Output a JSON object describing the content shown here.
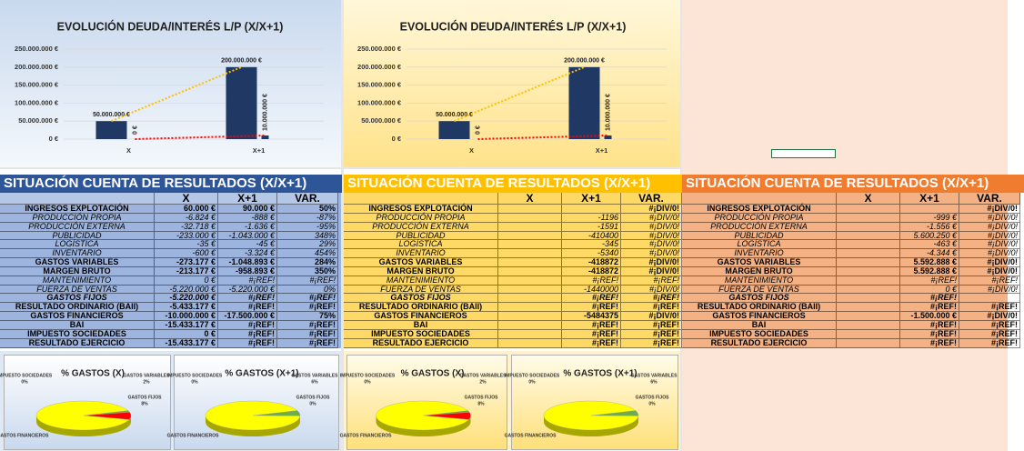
{
  "chart_data": [
    {
      "type": "bar",
      "title": "EVOLUCIÓN DEUDA/INTERÉS L/P (X/X+1)",
      "categories": [
        "X",
        "X+1"
      ],
      "series": [
        {
          "color": "#1f3864",
          "trendline": "#ffc000",
          "values": [
            50000000,
            200000000
          ],
          "value_labels": [
            "50.000.000 €",
            "200.000.000 €"
          ]
        },
        {
          "color": "#1f3864",
          "trendline": "#ff0000",
          "values": [
            0,
            10000000
          ],
          "value_labels": [
            "0 €",
            "10.000.000 €"
          ]
        }
      ],
      "ylim": [
        0,
        250000000
      ],
      "yticks": [
        {
          "value": 0,
          "label": "0 €"
        },
        {
          "value": 50000000,
          "label": "50.000.000 €"
        },
        {
          "value": 100000000,
          "label": "100.000.000 €"
        },
        {
          "value": 150000000,
          "label": "150.000.000 €"
        },
        {
          "value": 200000000,
          "label": "200.000.000 €"
        },
        {
          "value": 250000000,
          "label": "250.000.000 €"
        }
      ],
      "grid": true
    },
    {
      "type": "bar",
      "title": "EVOLUCIÓN DEUDA/INTERÉS L/P (X/X+1)",
      "categories": [
        "X",
        "X+1"
      ],
      "series": [
        {
          "color": "#1f3864",
          "trendline": "#ffc000",
          "values": [
            50000000,
            200000000
          ],
          "value_labels": [
            "50.000.000 €",
            "200.000.000 €"
          ]
        },
        {
          "color": "#1f3864",
          "trendline": "#ff0000",
          "values": [
            0,
            10000000
          ],
          "value_labels": [
            "0 €",
            "10.000.000 €"
          ]
        }
      ],
      "ylim": [
        0,
        250000000
      ],
      "yticks": [
        {
          "value": 0,
          "label": "0 €"
        },
        {
          "value": 50000000,
          "label": "50.000.000 €"
        },
        {
          "value": 100000000,
          "label": "100.000.000 €"
        },
        {
          "value": 150000000,
          "label": "150.000.000 €"
        },
        {
          "value": 200000000,
          "label": "200.000.000 €"
        },
        {
          "value": 250000000,
          "label": "250.000.000 €"
        }
      ],
      "grid": true
    },
    {
      "type": "pie",
      "title": "% GASTOS (X)",
      "categories": [
        "IMPUESTO SOCIEDADES",
        "GASTOS VARIABLES",
        "GASTOS FIJOS",
        "GASTOS FINANCIEROS"
      ],
      "values": [
        0,
        2,
        8,
        90
      ],
      "value_labels": [
        "0%",
        "2%",
        "8%",
        null
      ],
      "colors": [
        "#4472c4",
        "#70ad47",
        "#ff0000",
        "#ffff00"
      ]
    },
    {
      "type": "pie",
      "title": "% GASTOS (X+1)",
      "categories": [
        "IMPUESTO SOCIEDADES",
        "GASTOS VARIABLES",
        "GASTOS FIJOS",
        "GASTOS FINANCIEROS"
      ],
      "values": [
        0,
        6,
        0,
        94
      ],
      "value_labels": [
        "0%",
        "6%",
        "0%",
        null
      ],
      "colors": [
        "#4472c4",
        "#70ad47",
        "#ff0000",
        "#ffff00"
      ]
    },
    {
      "type": "pie",
      "title": "% GASTOS (X)",
      "categories": [
        "IMPUESTO SOCIEDADES",
        "GASTOS VARIABLES",
        "GASTOS FIJOS",
        "GASTOS FINANCIEROS"
      ],
      "values": [
        0,
        2,
        8,
        90
      ],
      "value_labels": [
        "0%",
        "2%",
        "8%",
        null
      ],
      "colors": [
        "#4472c4",
        "#70ad47",
        "#ff0000",
        "#ffff00"
      ]
    },
    {
      "type": "pie",
      "title": "% GASTOS (X+1)",
      "categories": [
        "IMPUESTO SOCIEDADES",
        "GASTOS VARIABLES",
        "GASTOS FIJOS",
        "GASTOS FINANCIEROS"
      ],
      "values": [
        0,
        6,
        0,
        94
      ],
      "value_labels": [
        "0%",
        "6%",
        "0%",
        null
      ],
      "colors": [
        "#4472c4",
        "#70ad47",
        "#ff0000",
        "#ffff00"
      ]
    }
  ],
  "tables": [
    {
      "title": "SITUACIÓN CUENTA DE RESULTADOS (X/X+1)",
      "columns": [
        "X",
        "X+1",
        "VAR."
      ],
      "rows": [
        [
          "INGRESOS EXPLOTACIÓN",
          "60.000 €",
          "90.000 €",
          "50%"
        ],
        [
          "PRODUCCIÓN PROPIA",
          "-6.824 €",
          "-888 €",
          "-87%"
        ],
        [
          "PRODUCCIÓN EXTERNA",
          "-32.718 €",
          "-1.636 €",
          "-95%"
        ],
        [
          "PUBLICIDAD",
          "-233.000 €",
          "-1.043.000 €",
          "348%"
        ],
        [
          "LOGÍSTICA",
          "-35 €",
          "-45 €",
          "29%"
        ],
        [
          "INVENTARIO",
          "-600 €",
          "-3.324 €",
          "454%"
        ],
        [
          "GASTOS VARIABLES",
          "-273.177 €",
          "-1.048.893 €",
          "284%"
        ],
        [
          "MARGEN BRUTO",
          "-213.177 €",
          "-958.893 €",
          "350%"
        ],
        [
          "MANTENIMIENTO",
          "0 €",
          "#¡REF!",
          "#¡REF!"
        ],
        [
          "FUERZA DE VENTAS",
          "-5.220.000 €",
          "-5.220.000 €",
          "0%"
        ],
        [
          "GASTOS FIJOS",
          "-5.220.000 €",
          "#¡REF!",
          "#¡REF!"
        ],
        [
          "RESULTADO ORDINARIO (BAII)",
          "-5.433.177 €",
          "#¡REF!",
          "#¡REF!"
        ],
        [
          "GASTOS FINANCIEROS",
          "-10.000.000 €",
          "-17.500.000 €",
          "75%"
        ],
        [
          "BAI",
          "-15.433.177 €",
          "#¡REF!",
          "#¡REF!"
        ],
        [
          "IMPUESTO SOCIEDADES",
          "0 €",
          "#¡REF!",
          "#¡REF!"
        ],
        [
          "RESULTADO EJERCICIO",
          "-15.433.177 €",
          "#¡REF!",
          "#¡REF!"
        ]
      ]
    },
    {
      "title": "SITUACIÓN CUENTA DE RESULTADOS (X/X+1)",
      "columns": [
        "X",
        "X+1",
        "VAR."
      ],
      "rows": [
        [
          "INGRESOS EXPLOTACIÓN",
          null,
          null,
          "#¡DIV/0!"
        ],
        [
          "PRODUCCIÓN PROPIA",
          null,
          -1196,
          "#¡DIV/0!"
        ],
        [
          "PRODUCCIÓN EXTERNA",
          null,
          -1591,
          "#¡DIV/0!"
        ],
        [
          "PUBLICIDAD",
          null,
          -410400,
          "#¡DIV/0!"
        ],
        [
          "LOGÍSTICA",
          null,
          -345,
          "#¡DIV/0!"
        ],
        [
          "INVENTARIO",
          null,
          -5340,
          "#¡DIV/0!"
        ],
        [
          "GASTOS VARIABLES",
          null,
          -418872,
          "#¡DIV/0!"
        ],
        [
          "MARGEN BRUTO",
          null,
          -418872,
          "#¡DIV/0!"
        ],
        [
          "MANTENIMIENTO",
          null,
          "#¡REF!",
          "#¡REF!"
        ],
        [
          "FUERZA DE VENTAS",
          null,
          -1440000,
          "#¡DIV/0!"
        ],
        [
          "GASTOS FIJOS",
          null,
          "#¡REF!",
          "#¡REF!"
        ],
        [
          "RESULTADO ORDINARIO (BAII)",
          null,
          "#¡REF!",
          "#¡REF!"
        ],
        [
          "GASTOS FINANCIEROS",
          null,
          -5484375,
          "#¡DIV/0!"
        ],
        [
          "BAI",
          null,
          "#¡REF!",
          "#¡REF!"
        ],
        [
          "IMPUESTO SOCIEDADES",
          null,
          "#¡REF!",
          "#¡REF!"
        ],
        [
          "RESULTADO EJERCICIO",
          null,
          "#¡REF!",
          "#¡REF!"
        ]
      ]
    },
    {
      "title": "SITUACIÓN CUENTA DE RESULTADOS (X/X+1)",
      "columns": [
        "X",
        "X+1",
        "VAR."
      ],
      "rows": [
        [
          "INGRESOS EXPLOTACIÓN",
          null,
          null,
          "#¡DIV/0!"
        ],
        [
          "PRODUCCIÓN PROPIA",
          null,
          "-999 €",
          "#¡DIV/0!"
        ],
        [
          "PRODUCCIÓN EXTERNA",
          null,
          "-1.556 €",
          "#¡DIV/0!"
        ],
        [
          "PUBLICIDAD",
          null,
          "5.600.250 €",
          "#¡DIV/0!"
        ],
        [
          "LOGÍSTICA",
          null,
          "-463 €",
          "#¡DIV/0!"
        ],
        [
          "INVENTARIO",
          null,
          "-4.344 €",
          "#¡DIV/0!"
        ],
        [
          "GASTOS VARIABLES",
          null,
          "5.592.888 €",
          "#¡DIV/0!"
        ],
        [
          "MARGEN BRUTO",
          null,
          "5.592.888 €",
          "#¡DIV/0!"
        ],
        [
          "MANTENIMIENTO",
          null,
          "#¡REF!",
          "#¡REF!"
        ],
        [
          "FUERZA DE VENTAS",
          null,
          "0 €",
          "#¡DIV/0!"
        ],
        [
          "GASTOS FIJOS",
          null,
          "#¡REF!",
          null
        ],
        [
          "RESULTADO ORDINARIO (BAII)",
          null,
          "#¡REF!",
          "#¡REF!"
        ],
        [
          "GASTOS FINANCIEROS",
          null,
          "-1.500.000 €",
          "#¡DIV/0!"
        ],
        [
          "BAI",
          null,
          "#¡REF!",
          "#¡REF!"
        ],
        [
          "IMPUESTO SOCIEDADES",
          null,
          "#¡REF!",
          "#¡REF!"
        ],
        [
          "RESULTADO EJERCICIO",
          null,
          "#¡REF!",
          "#¡REF!"
        ]
      ]
    }
  ]
}
